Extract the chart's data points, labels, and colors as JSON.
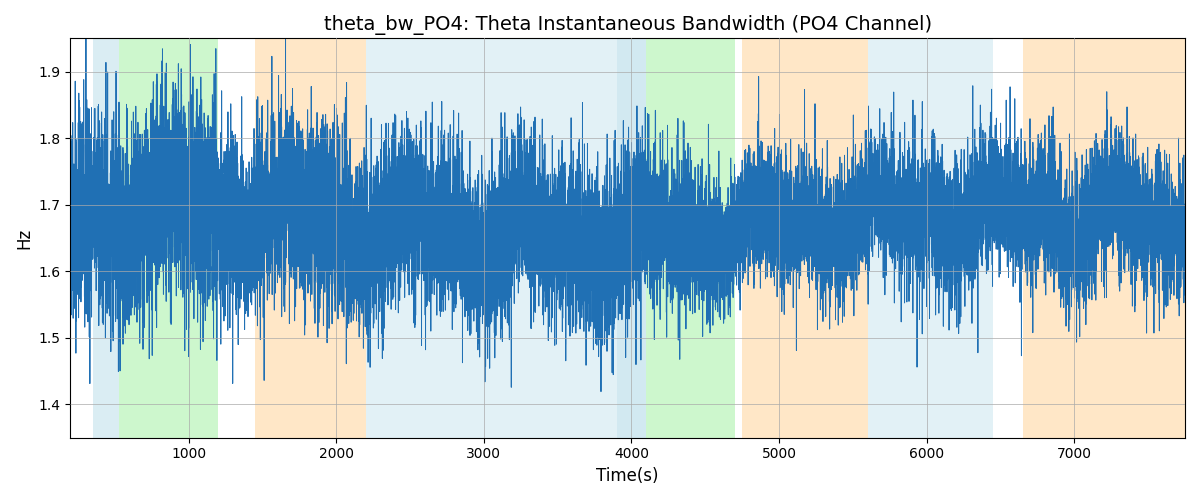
{
  "title": "theta_bw_PO4: Theta Instantaneous Bandwidth (PO4 Channel)",
  "xlabel": "Time(s)",
  "ylabel": "Hz",
  "xlim": [
    200,
    7750
  ],
  "ylim": [
    1.35,
    1.95
  ],
  "yticks": [
    1.4,
    1.5,
    1.6,
    1.7,
    1.8,
    1.9
  ],
  "xticks": [
    1000,
    2000,
    3000,
    4000,
    5000,
    6000,
    7000
  ],
  "line_color": "#2070b4",
  "line_width": 0.7,
  "seed": 42,
  "n_points": 15000,
  "background_color": "#ffffff",
  "grid_color": "#aaaaaa",
  "title_fontsize": 14,
  "label_fontsize": 12,
  "bands": [
    {
      "xmin": 350,
      "xmax": 530,
      "color": "#add8e6",
      "alpha": 0.45
    },
    {
      "xmin": 530,
      "xmax": 1200,
      "color": "#90ee90",
      "alpha": 0.45
    },
    {
      "xmin": 1450,
      "xmax": 2200,
      "color": "#ffd59a",
      "alpha": 0.55
    },
    {
      "xmin": 2200,
      "xmax": 3900,
      "color": "#add8e6",
      "alpha": 0.35
    },
    {
      "xmin": 3900,
      "xmax": 4100,
      "color": "#add8e6",
      "alpha": 0.55
    },
    {
      "xmin": 4100,
      "xmax": 4700,
      "color": "#90ee90",
      "alpha": 0.45
    },
    {
      "xmin": 4750,
      "xmax": 5600,
      "color": "#ffd59a",
      "alpha": 0.55
    },
    {
      "xmin": 5600,
      "xmax": 6450,
      "color": "#add8e6",
      "alpha": 0.35
    },
    {
      "xmin": 6650,
      "xmax": 7750,
      "color": "#ffd59a",
      "alpha": 0.55
    }
  ]
}
